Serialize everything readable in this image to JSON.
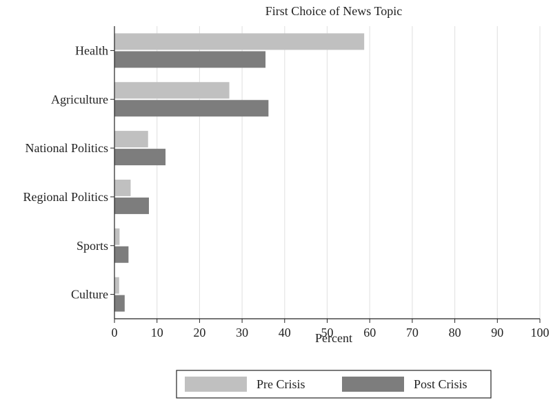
{
  "chart_data": {
    "type": "bar",
    "orientation": "horizontal",
    "title": "First Choice of News Topic",
    "xlabel": "Percent",
    "ylabel": "",
    "xlim": [
      0,
      100
    ],
    "xticks": [
      0,
      10,
      20,
      30,
      40,
      50,
      60,
      70,
      80,
      90,
      100
    ],
    "grid": "vertical",
    "legend_position": "bottom",
    "categories": [
      "Health",
      "Agriculture",
      "National Politics",
      "Regional Politics",
      "Sports",
      "Culture"
    ],
    "series": [
      {
        "name": "Pre Crisis",
        "color": "#c0c0c0",
        "values": [
          58.7,
          27.0,
          7.9,
          3.8,
          1.2,
          1.1
        ]
      },
      {
        "name": "Post Crisis",
        "color": "#7d7d7d",
        "values": [
          35.5,
          36.2,
          12.0,
          8.1,
          3.3,
          2.4
        ]
      }
    ]
  }
}
